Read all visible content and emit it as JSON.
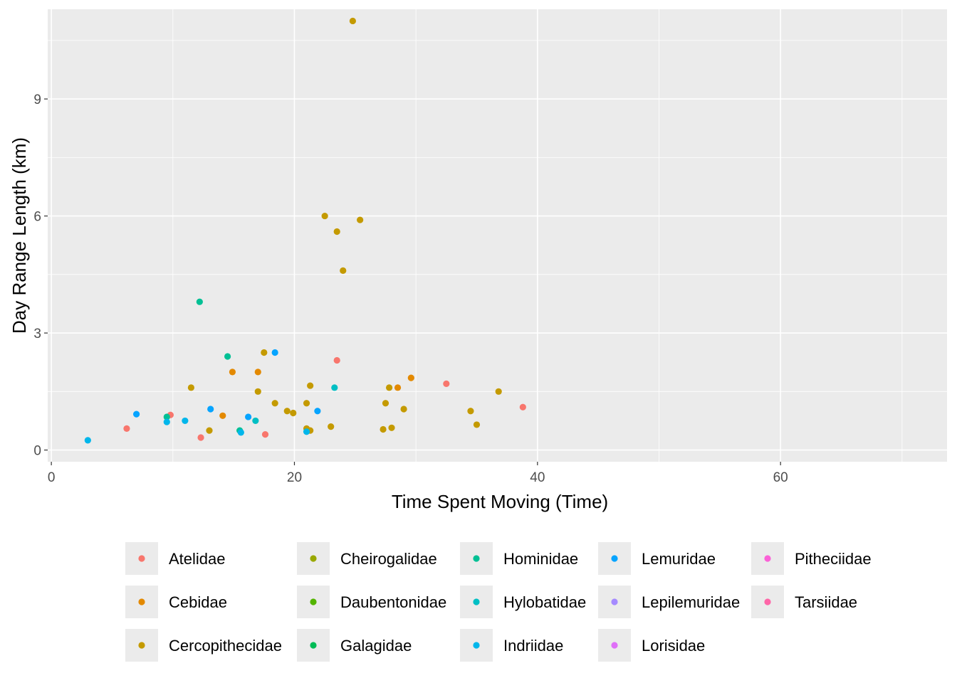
{
  "chart_data": {
    "type": "scatter",
    "title": "",
    "xlabel": "Time Spent Moving (Time)",
    "ylabel": "Day Range Length (km)",
    "xlim": [
      -0.3,
      73.7
    ],
    "ylim": [
      -0.3,
      11.3
    ],
    "x_ticks": [
      0,
      20,
      40,
      60
    ],
    "y_ticks": [
      0,
      3,
      6,
      9
    ],
    "grid": true,
    "legend_position": "bottom",
    "series": [
      {
        "name": "Atelidae",
        "color": "#F8766D",
        "points": [
          [
            6.2,
            0.55
          ],
          [
            9.8,
            0.9
          ],
          [
            12.3,
            0.32
          ],
          [
            17.6,
            0.4
          ],
          [
            23.5,
            2.3
          ],
          [
            32.5,
            1.7
          ],
          [
            38.8,
            1.1
          ]
        ]
      },
      {
        "name": "Cebidae",
        "color": "#E38900",
        "points": [
          [
            14.1,
            0.88
          ],
          [
            14.9,
            2.0
          ],
          [
            17.0,
            2.0
          ],
          [
            28.5,
            1.6
          ],
          [
            29.6,
            1.85
          ]
        ]
      },
      {
        "name": "Cercopithecidae",
        "color": "#C49A00",
        "points": [
          [
            11.5,
            1.6
          ],
          [
            13.0,
            0.5
          ],
          [
            17.0,
            1.5
          ],
          [
            17.5,
            2.5
          ],
          [
            18.4,
            1.2
          ],
          [
            19.4,
            1.0
          ],
          [
            19.9,
            0.95
          ],
          [
            21.0,
            1.2
          ],
          [
            21.0,
            0.55
          ],
          [
            21.3,
            0.5
          ],
          [
            21.3,
            1.65
          ],
          [
            22.5,
            6.0
          ],
          [
            23.0,
            0.6
          ],
          [
            23.5,
            5.6
          ],
          [
            24.0,
            4.6
          ],
          [
            24.8,
            11.0
          ],
          [
            25.4,
            5.9
          ],
          [
            27.3,
            0.53
          ],
          [
            27.5,
            1.2
          ],
          [
            27.8,
            1.6
          ],
          [
            28.0,
            0.57
          ],
          [
            29.0,
            1.05
          ],
          [
            34.5,
            1.0
          ],
          [
            35.0,
            0.65
          ],
          [
            36.8,
            1.5
          ]
        ]
      },
      {
        "name": "Cheirogalidae",
        "color": "#99A800",
        "points": []
      },
      {
        "name": "Daubentonidae",
        "color": "#53B400",
        "points": []
      },
      {
        "name": "Galagidae",
        "color": "#00BC56",
        "points": []
      },
      {
        "name": "Hominidae",
        "color": "#00C094",
        "points": [
          [
            9.5,
            0.85
          ],
          [
            12.2,
            3.8
          ],
          [
            14.5,
            2.4
          ],
          [
            15.5,
            0.5
          ]
        ]
      },
      {
        "name": "Hylobatidae",
        "color": "#00BFC4",
        "points": [
          [
            16.8,
            0.75
          ],
          [
            23.3,
            1.6
          ]
        ]
      },
      {
        "name": "Indriidae",
        "color": "#00B6EB",
        "points": [
          [
            3.0,
            0.25
          ],
          [
            9.5,
            0.72
          ],
          [
            11.0,
            0.75
          ],
          [
            15.6,
            0.45
          ],
          [
            21.0,
            0.47
          ]
        ]
      },
      {
        "name": "Lemuridae",
        "color": "#06A4FF",
        "points": [
          [
            7.0,
            0.92
          ],
          [
            13.1,
            1.05
          ],
          [
            16.2,
            0.85
          ],
          [
            18.4,
            2.5
          ],
          [
            21.9,
            1.0
          ]
        ]
      },
      {
        "name": "Lepilemuridae",
        "color": "#A58AFF",
        "points": []
      },
      {
        "name": "Lorisidae",
        "color": "#DF70F8",
        "points": []
      },
      {
        "name": "Pitheciidae",
        "color": "#FB61D7",
        "points": []
      },
      {
        "name": "Tarsiidae",
        "color": "#FF66A8",
        "points": []
      }
    ]
  }
}
